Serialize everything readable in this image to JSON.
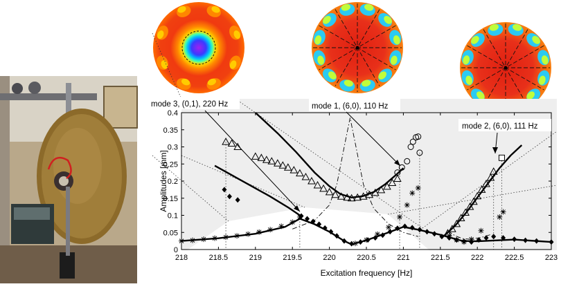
{
  "chart_data": {
    "type": "scatter",
    "title": "",
    "xlabel": "Excitation frequency [Hz]",
    "ylabel": "Amplitudes [mm]",
    "xlim": [
      218,
      223
    ],
    "ylim": [
      0,
      0.4
    ],
    "x_ticks": [
      218,
      218.5,
      219,
      219.5,
      220,
      220.5,
      221,
      221.5,
      222,
      222.5,
      223
    ],
    "x_tick_labels": [
      "218",
      "218.5",
      "219",
      "219.5",
      "220",
      "220.5",
      "221",
      "221.5",
      "222",
      "222.5",
      "223"
    ],
    "y_ticks": [
      0,
      0.05,
      0.1,
      0.15,
      0.2,
      0.25,
      0.3,
      0.35,
      0.4
    ],
    "y_tick_labels": [
      "0",
      "0.05",
      "0.1",
      "0.15",
      "0.2",
      "0.25",
      "0.3",
      "0.35",
      "0.4"
    ],
    "grid": false,
    "annotations": [
      {
        "text": "mode 3, (0,1), 220 Hz",
        "x": 219.6,
        "y": 0.098
      },
      {
        "text": "mode 1, (6,0), 110 Hz",
        "x": 220.95,
        "y": 0.24
      },
      {
        "text": "mode 2, (6,0), 111 Hz",
        "x": 222.25,
        "y": 0.275
      }
    ],
    "series": [
      {
        "marker": "triangle",
        "points": [
          [
            218.6,
            0.315
          ],
          [
            218.68,
            0.31
          ],
          [
            218.76,
            0.3
          ],
          [
            219.0,
            0.272
          ],
          [
            219.08,
            0.268
          ],
          [
            219.15,
            0.262
          ],
          [
            219.22,
            0.258
          ],
          [
            219.3,
            0.252
          ],
          [
            219.37,
            0.246
          ],
          [
            219.44,
            0.24
          ],
          [
            219.52,
            0.232
          ],
          [
            219.6,
            0.223
          ],
          [
            219.68,
            0.212
          ],
          [
            219.76,
            0.2
          ],
          [
            219.84,
            0.188
          ],
          [
            219.92,
            0.178
          ],
          [
            220.0,
            0.168
          ],
          [
            220.08,
            0.16
          ],
          [
            220.16,
            0.155
          ],
          [
            220.24,
            0.152
          ],
          [
            220.3,
            0.15
          ],
          [
            220.38,
            0.152
          ],
          [
            220.46,
            0.155
          ],
          [
            220.54,
            0.16
          ],
          [
            220.62,
            0.166
          ],
          [
            220.7,
            0.174
          ],
          [
            220.78,
            0.184
          ],
          [
            220.85,
            0.195
          ],
          [
            220.92,
            0.207
          ],
          [
            221.6,
            0.048
          ],
          [
            221.66,
            0.06
          ],
          [
            221.72,
            0.075
          ],
          [
            221.78,
            0.092
          ],
          [
            221.84,
            0.108
          ],
          [
            221.9,
            0.125
          ],
          [
            221.95,
            0.14
          ],
          [
            222.0,
            0.156
          ],
          [
            222.06,
            0.175
          ],
          [
            222.12,
            0.192
          ],
          [
            222.18,
            0.21
          ],
          [
            222.22,
            0.228
          ]
        ]
      },
      {
        "marker": "circle",
        "points": [
          [
            220.92,
            0.225
          ],
          [
            220.98,
            0.24
          ],
          [
            221.05,
            0.258
          ],
          [
            221.1,
            0.3
          ],
          [
            221.13,
            0.315
          ],
          [
            221.17,
            0.328
          ],
          [
            221.2,
            0.33
          ],
          [
            221.22,
            0.283
          ]
        ]
      },
      {
        "marker": "square",
        "points": [
          [
            222.33,
            0.268
          ]
        ]
      },
      {
        "marker": "diamond",
        "points": [
          [
            218.58,
            0.175
          ],
          [
            218.65,
            0.155
          ],
          [
            218.76,
            0.145
          ],
          [
            219.62,
            0.098
          ],
          [
            219.7,
            0.09
          ],
          [
            219.78,
            0.082
          ],
          [
            219.86,
            0.074
          ],
          [
            219.94,
            0.063
          ],
          [
            220.02,
            0.052
          ],
          [
            220.1,
            0.04
          ],
          [
            220.2,
            0.025
          ],
          [
            220.3,
            0.017
          ],
          [
            220.42,
            0.022
          ],
          [
            220.52,
            0.028
          ],
          [
            220.62,
            0.034
          ],
          [
            220.72,
            0.042
          ],
          [
            220.82,
            0.052
          ],
          [
            220.92,
            0.062
          ],
          [
            221.02,
            0.068
          ],
          [
            221.12,
            0.064
          ],
          [
            221.22,
            0.058
          ],
          [
            221.32,
            0.052
          ],
          [
            221.42,
            0.046
          ],
          [
            221.52,
            0.038
          ],
          [
            221.62,
            0.034
          ],
          [
            221.72,
            0.028
          ],
          [
            221.82,
            0.024
          ],
          [
            221.92,
            0.022
          ],
          [
            222.02,
            0.028
          ],
          [
            222.12,
            0.034
          ],
          [
            222.22,
            0.038
          ],
          [
            222.35,
            0.034
          ],
          [
            222.5,
            0.03
          ],
          [
            222.65,
            0.027
          ],
          [
            222.8,
            0.025
          ],
          [
            223.0,
            0.022
          ]
        ]
      },
      {
        "marker": "asterisk",
        "points": [
          [
            218.0,
            0.025
          ],
          [
            218.15,
            0.027
          ],
          [
            218.3,
            0.03
          ],
          [
            218.45,
            0.033
          ],
          [
            218.6,
            0.036
          ],
          [
            218.75,
            0.04
          ],
          [
            218.9,
            0.045
          ],
          [
            219.05,
            0.051
          ],
          [
            219.2,
            0.058
          ],
          [
            219.35,
            0.068
          ],
          [
            219.5,
            0.08
          ],
          [
            219.6,
            0.095
          ],
          [
            220.35,
            0.018
          ],
          [
            220.5,
            0.028
          ],
          [
            220.65,
            0.045
          ],
          [
            220.8,
            0.065
          ],
          [
            220.95,
            0.095
          ],
          [
            221.05,
            0.13
          ],
          [
            221.12,
            0.165
          ],
          [
            221.2,
            0.18
          ],
          [
            221.62,
            0.04
          ],
          [
            221.72,
            0.028
          ],
          [
            221.82,
            0.022
          ],
          [
            221.92,
            0.03
          ],
          [
            222.05,
            0.055
          ],
          [
            222.3,
            0.095
          ],
          [
            222.35,
            0.11
          ]
        ]
      }
    ],
    "curves": [
      {
        "style": "solid-thick",
        "points": [
          [
            219.0,
            0.4
          ],
          [
            219.3,
            0.34
          ],
          [
            219.55,
            0.285
          ],
          [
            219.8,
            0.225
          ],
          [
            220.0,
            0.185
          ],
          [
            220.15,
            0.162
          ],
          [
            220.3,
            0.152
          ],
          [
            220.45,
            0.156
          ],
          [
            220.6,
            0.168
          ],
          [
            220.75,
            0.19
          ],
          [
            220.9,
            0.218
          ],
          [
            221.0,
            0.238
          ]
        ]
      },
      {
        "style": "solid-thick",
        "points": [
          [
            218.45,
            0.245
          ],
          [
            218.7,
            0.215
          ],
          [
            218.95,
            0.185
          ],
          [
            219.2,
            0.155
          ],
          [
            219.45,
            0.122
          ],
          [
            219.6,
            0.1
          ]
        ]
      },
      {
        "style": "solid-thick",
        "points": [
          [
            218.0,
            0.025
          ],
          [
            218.5,
            0.033
          ],
          [
            219.0,
            0.046
          ],
          [
            219.4,
            0.066
          ],
          [
            219.6,
            0.09
          ],
          [
            219.8,
            0.074
          ],
          [
            220.0,
            0.052
          ],
          [
            220.2,
            0.025
          ],
          [
            220.3,
            0.015
          ],
          [
            220.5,
            0.027
          ],
          [
            220.8,
            0.05
          ],
          [
            221.0,
            0.066
          ],
          [
            221.2,
            0.058
          ],
          [
            221.5,
            0.043
          ],
          [
            221.8,
            0.025
          ],
          [
            222.0,
            0.024
          ],
          [
            222.5,
            0.029
          ],
          [
            223.0,
            0.022
          ]
        ]
      },
      {
        "style": "solid-thick",
        "points": [
          [
            221.55,
            0.04
          ],
          [
            221.7,
            0.07
          ],
          [
            221.85,
            0.108
          ],
          [
            222.0,
            0.152
          ],
          [
            222.15,
            0.195
          ],
          [
            222.3,
            0.238
          ],
          [
            222.45,
            0.275
          ],
          [
            222.6,
            0.305
          ]
        ]
      },
      {
        "style": "dashdot",
        "points": [
          [
            219.5,
            0.06
          ],
          [
            219.8,
            0.085
          ],
          [
            220.0,
            0.13
          ],
          [
            220.1,
            0.19
          ],
          [
            220.2,
            0.3
          ],
          [
            220.28,
            0.385
          ],
          [
            220.36,
            0.3
          ],
          [
            220.46,
            0.19
          ],
          [
            220.6,
            0.12
          ],
          [
            220.8,
            0.075
          ],
          [
            221.0,
            0.05
          ],
          [
            221.2,
            0.038
          ]
        ]
      },
      {
        "style": "dashdot",
        "points": [
          [
            221.6,
            0.055
          ],
          [
            221.7,
            0.04
          ],
          [
            221.8,
            0.032
          ],
          [
            221.9,
            0.03
          ],
          [
            222.05,
            0.035
          ],
          [
            222.2,
            0.045
          ]
        ]
      }
    ]
  },
  "insets": [
    {
      "pattern": "axisymmetric-(0,1)",
      "nodal_diameters": 0,
      "colors": [
        "#f03010",
        "#ff8a00",
        "#ffd000",
        "#00b8ff",
        "#4030ff",
        "#a020f0"
      ]
    },
    {
      "pattern": "(6,0)",
      "nodal_diameters": 6,
      "colors": [
        "#e82010",
        "#f55a10",
        "#ffb000",
        "#c8ff30",
        "#20d0ff"
      ]
    },
    {
      "pattern": "(6,0)",
      "nodal_diameters": 6,
      "colors": [
        "#e82010",
        "#f55a10",
        "#ffb000",
        "#c8ff30",
        "#20d0ff"
      ]
    }
  ]
}
